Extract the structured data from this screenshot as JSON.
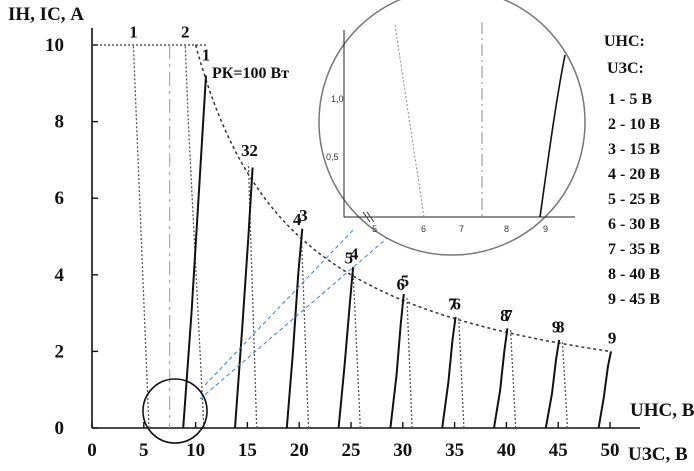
{
  "chart_data": {
    "type": "line",
    "y_axis_label": "IН, IС, A",
    "x_axis_label_top": "UНС, B",
    "x_axis_label_bottom": "UЗС, B",
    "x_ticks": [
      "0",
      "5",
      "10",
      "15",
      "20",
      "25",
      "30",
      "35",
      "40",
      "45",
      "50"
    ],
    "y_ticks": [
      "0",
      "2",
      "4",
      "6",
      "8",
      "10"
    ],
    "xlim": [
      0,
      50
    ],
    "ylim": [
      0,
      10.5
    ],
    "power_label": "PК=100 Вт",
    "power_curve": {
      "p": 100,
      "x_from": 10,
      "x_to": 50
    },
    "legend": {
      "header1": "UНС:",
      "header2": "UЗС:",
      "items": [
        "1 - 5 B",
        "2 - 10 B",
        "3 - 15 B",
        "4 - 20 B",
        "5 - 25 B",
        "6 - 30 B",
        "7 - 35 B",
        "8 - 40 B",
        "9 - 45 B"
      ]
    },
    "load_lines": [
      {
        "label": "1",
        "x": [
          5.5,
          4.3,
          4.0
        ],
        "y": [
          0,
          8.0,
          10.0
        ],
        "label_at": [
          4.0,
          10.2
        ]
      },
      {
        "label": "2",
        "x": [
          10.8,
          9.3,
          9.0
        ],
        "y": [
          0,
          8.0,
          10.0
        ],
        "label_at": [
          9.0,
          10.2
        ]
      },
      {
        "label": "3",
        "x": [
          15.9,
          15.1
        ],
        "y": [
          0,
          6.9
        ],
        "label_at": [
          14.8,
          7.1
        ]
      },
      {
        "label": "4",
        "x": [
          20.9,
          20.2
        ],
        "y": [
          0,
          5.1
        ],
        "label_at": [
          19.8,
          5.3
        ]
      },
      {
        "label": "5",
        "x": [
          25.9,
          25.2
        ],
        "y": [
          0,
          4.1
        ],
        "label_at": [
          24.8,
          4.3
        ]
      },
      {
        "label": "6",
        "x": [
          30.9,
          30.4
        ],
        "y": [
          0,
          3.4
        ],
        "label_at": [
          29.8,
          3.6
        ]
      },
      {
        "label": "7",
        "x": [
          35.9,
          35.4
        ],
        "y": [
          0,
          2.9
        ],
        "label_at": [
          34.8,
          3.1
        ]
      },
      {
        "label": "8",
        "x": [
          40.9,
          40.4
        ],
        "y": [
          0,
          2.6
        ],
        "label_at": [
          39.8,
          2.8
        ]
      },
      {
        "label": "9",
        "x": [
          45.9,
          45.4
        ],
        "y": [
          0,
          2.3
        ],
        "label_at": [
          44.8,
          2.5
        ]
      }
    ],
    "transfer_curves": [
      {
        "label": "1",
        "x": [
          8.8,
          9.6,
          10.4,
          11.0
        ],
        "y": [
          0,
          3.0,
          6.5,
          9.2
        ],
        "label_at": [
          11.0,
          9.6
        ]
      },
      {
        "label": "2",
        "x": [
          13.8,
          14.5,
          15.1,
          15.5
        ],
        "y": [
          0,
          2.6,
          5.0,
          6.8
        ],
        "label_at": [
          15.6,
          7.1
        ]
      },
      {
        "label": "3",
        "x": [
          18.8,
          19.4,
          19.9,
          20.3
        ],
        "y": [
          0,
          2.0,
          4.0,
          5.2
        ],
        "label_at": [
          20.4,
          5.4
        ]
      },
      {
        "label": "4",
        "x": [
          23.8,
          24.4,
          24.9,
          25.2
        ],
        "y": [
          0,
          1.7,
          3.3,
          4.2
        ],
        "label_at": [
          25.3,
          4.4
        ]
      },
      {
        "label": "5",
        "x": [
          28.8,
          29.4,
          29.8,
          30.1
        ],
        "y": [
          0,
          1.4,
          2.7,
          3.5
        ],
        "label_at": [
          30.2,
          3.7
        ]
      },
      {
        "label": "6",
        "x": [
          33.8,
          34.4,
          34.8,
          35.1
        ],
        "y": [
          0,
          1.2,
          2.3,
          2.9
        ],
        "label_at": [
          35.2,
          3.1
        ]
      },
      {
        "label": "7",
        "x": [
          38.8,
          39.4,
          39.8,
          40.1
        ],
        "y": [
          0,
          1.0,
          2.0,
          2.6
        ],
        "label_at": [
          40.2,
          2.8
        ]
      },
      {
        "label": "8",
        "x": [
          43.8,
          44.4,
          44.8,
          45.1
        ],
        "y": [
          0,
          0.9,
          1.8,
          2.3
        ],
        "label_at": [
          45.2,
          2.5
        ]
      },
      {
        "label": "9",
        "x": [
          48.9,
          49.4,
          49.8,
          50.1
        ],
        "y": [
          0,
          0.8,
          1.6,
          2.0
        ],
        "label_at": [
          50.2,
          2.2
        ]
      }
    ],
    "zoom_inset": {
      "x_ticks": [
        "5",
        "6",
        "7",
        "8",
        "9"
      ],
      "y_ticks": [
        "0,5",
        "1,0"
      ]
    }
  }
}
